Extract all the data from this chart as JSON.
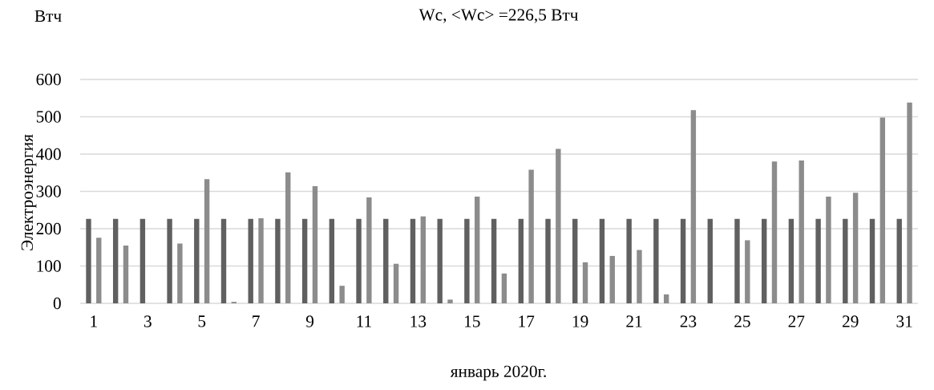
{
  "chart_data": {
    "type": "bar",
    "title": "Wc, <Wc> =226,5 Втч",
    "xlabel": "январь 2020г.",
    "ylabel": "Электроэнергия",
    "annotations": [
      "Втч"
    ],
    "categories": [
      "1",
      null,
      "3",
      null,
      "5",
      null,
      "7",
      null,
      "9",
      null,
      "11",
      null,
      "13",
      null,
      "15",
      null,
      "17",
      null,
      "19",
      null,
      "21",
      null,
      "23",
      null,
      "25",
      null,
      "27",
      null,
      "29",
      null,
      "31"
    ],
    "series": [
      {
        "color": "#606060",
        "values": [
          226.5,
          226.5,
          226.5,
          226.5,
          226.5,
          226.5,
          226.5,
          226.5,
          226.5,
          226.5,
          226.5,
          226.5,
          226.5,
          226.5,
          226.5,
          226.5,
          226.5,
          226.5,
          226.5,
          226.5,
          226.5,
          226.5,
          226.5,
          226.5,
          226.5,
          226.5,
          226.5,
          226.5,
          226.5,
          226.5,
          226.5
        ]
      },
      {
        "color": "#8c8c8c",
        "values": [
          176,
          155,
          0,
          160,
          333,
          4,
          228,
          351,
          314,
          47,
          284,
          106,
          233,
          10,
          286,
          80,
          358,
          414,
          110,
          127,
          143,
          24,
          518,
          0,
          169,
          380,
          383,
          286,
          296,
          498,
          538
        ]
      }
    ],
    "ylim": [
      0,
      600
    ],
    "yticks": [
      0,
      100,
      200,
      300,
      400,
      500,
      600
    ],
    "grid": "y"
  }
}
